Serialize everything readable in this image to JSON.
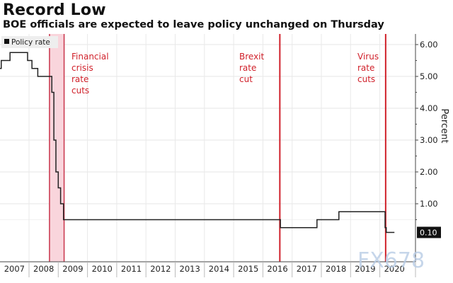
{
  "header": {
    "title": "Record Low",
    "subtitle": "BOE officials are expected to leave policy unchanged on Thursday"
  },
  "watermark": "FX678",
  "chart_data": {
    "type": "line",
    "title": "Record Low",
    "subtitle": "BOE officials are expected to leave policy unchanged on Thursday",
    "xlabel": "",
    "ylabel": "Percent",
    "xlim": [
      2007.0,
      2020.6
    ],
    "ylim": [
      0,
      6.4
    ],
    "y_ticks": [
      1,
      2,
      3,
      4,
      5,
      6
    ],
    "y_tick_labels": [
      "1.00",
      "2.00",
      "3.00",
      "4.00",
      "5.00",
      "6.00"
    ],
    "x_tick_labels": [
      "2007",
      "2008",
      "2009",
      "2010",
      "2011",
      "2012",
      "2013",
      "2014",
      "2015",
      "2016",
      "2017",
      "2018",
      "2019",
      "2020"
    ],
    "grid": true,
    "y_axis_side": "right",
    "legend": {
      "entries": [
        "Policy rate"
      ],
      "position": "top-left"
    },
    "last_value_label": "0.10",
    "series": [
      {
        "name": "Policy rate",
        "step": true,
        "points": [
          [
            2007.0,
            5.25
          ],
          [
            2007.05,
            5.5
          ],
          [
            2007.35,
            5.75
          ],
          [
            2007.95,
            5.5
          ],
          [
            2008.1,
            5.25
          ],
          [
            2008.3,
            5.0
          ],
          [
            2008.78,
            4.5
          ],
          [
            2008.85,
            3.0
          ],
          [
            2008.92,
            2.0
          ],
          [
            2009.0,
            1.5
          ],
          [
            2009.08,
            1.0
          ],
          [
            2009.18,
            0.5
          ],
          [
            2016.6,
            0.25
          ],
          [
            2017.85,
            0.5
          ],
          [
            2018.6,
            0.75
          ],
          [
            2020.18,
            0.25
          ],
          [
            2020.22,
            0.1
          ],
          [
            2020.5,
            0.1
          ]
        ]
      }
    ],
    "annotations": [
      {
        "type": "band",
        "x_start": 2008.7,
        "x_end": 2009.2,
        "label_lines": [
          "Financial",
          "crisis",
          "rate",
          "cuts"
        ]
      },
      {
        "type": "line",
        "x": 2016.58,
        "label_lines": [
          "Brexit",
          "rate",
          "cut"
        ]
      },
      {
        "type": "line",
        "x": 2020.2,
        "label_lines": [
          "Virus",
          "rate",
          "cuts"
        ]
      }
    ]
  }
}
